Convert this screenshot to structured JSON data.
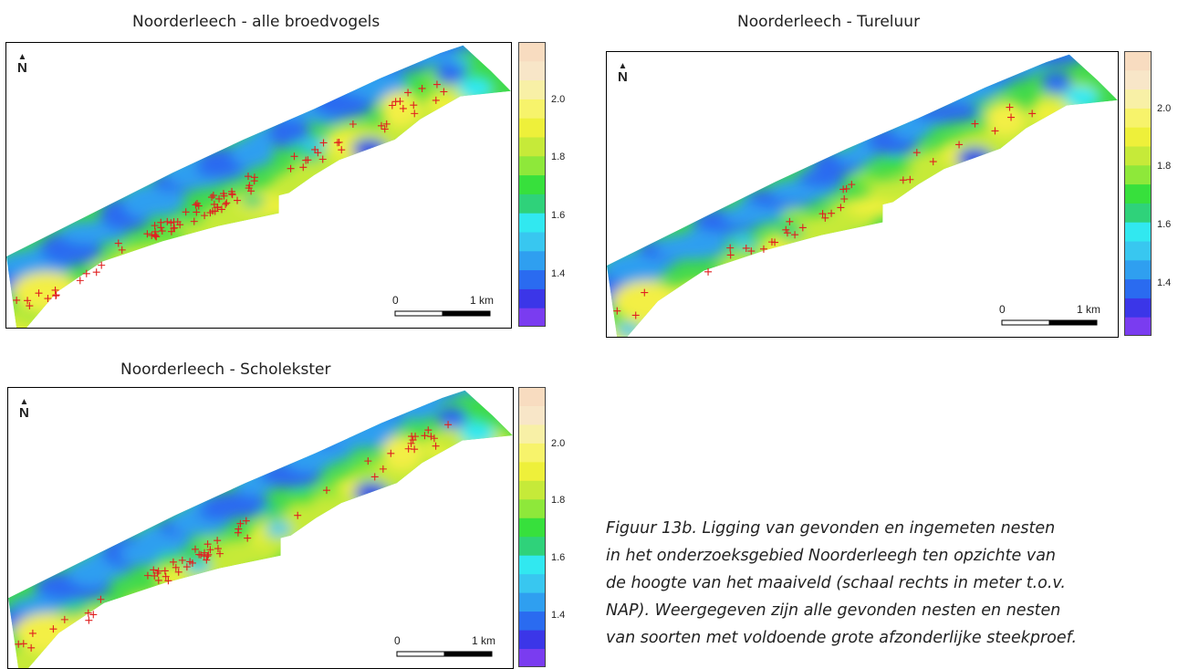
{
  "panels": [
    {
      "id": "alle",
      "title": "Noorderleech - alle broedvogels"
    },
    {
      "id": "tureluur",
      "title": "Noorderleech - Tureluur"
    },
    {
      "id": "scholekster",
      "title": "Noorderleech - Scholekster"
    }
  ],
  "legend": {
    "unit_note": "meter t.o.v. NAP",
    "ticks": [
      "2.0",
      "1.8",
      "1.6",
      "1.4"
    ],
    "colors": [
      "#7a3cf0",
      "#3b36e8",
      "#2a6bf0",
      "#2f9ff0",
      "#38c7f0",
      "#31e8f0",
      "#2fd27a",
      "#37e03c",
      "#8ee83a",
      "#c6ea39",
      "#eef03a",
      "#f7f36b",
      "#f8f0a6",
      "#f8e6c8",
      "#f8dcc0"
    ]
  },
  "north_label": "N",
  "scale_bar": {
    "start": "0",
    "end": "1 km"
  },
  "nest_marker": {
    "symbol": "+",
    "color": "#e02020"
  },
  "caption": {
    "lines": [
      "Figuur 13b. Ligging van gevonden en ingemeten nesten",
      "in het onderzoeksgebied Noorderleegh ten opzichte van",
      "de hoogte van het maaiveld (schaal rechts in meter t.o.v.",
      "NAP). Weergegeven zijn alle gevonden nesten en nesten",
      "van soorten met voldoende grote afzonderlijke steekproef."
    ]
  }
}
